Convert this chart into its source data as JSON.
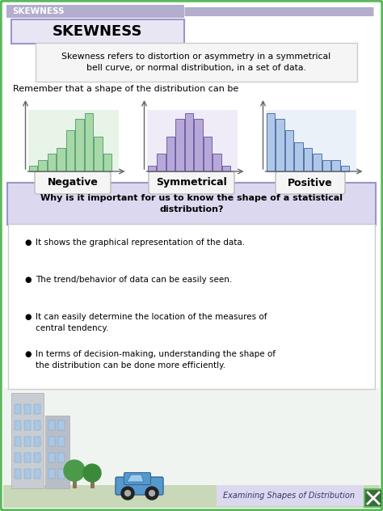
{
  "title_bar_text": "SKEWNESS",
  "title_bar_bg": "#b3aece",
  "main_bg": "#ffffff",
  "border_color": "#5cb85c",
  "heading_text": "SKEWNESS",
  "heading_bg": "#e8e6f5",
  "heading_border": "#9b96c8",
  "definition_text": "Skewness refers to distortion or asymmetry in a symmetrical\nbell curve, or normal distribution, in a set of data.",
  "definition_bg": "#f5f5f5",
  "definition_border": "#cccccc",
  "remember_text": "Remember that a shape of the distribution can be",
  "negative_label": "Negative",
  "symmetrical_label": "Symmetrical",
  "positive_label": "Positive",
  "label_bg": "#f5f5f5",
  "label_border": "#bbbbbb",
  "question_text": "Why is it important for us to know the shape of a statistical\ndistribution?",
  "question_bg": "#dcd8f0",
  "question_border": "#9b96c8",
  "bullet_points": [
    "It shows the graphical representation of the data.",
    "The trend/behavior of data can be easily seen.",
    "It can easily determine the location of the measures of\ncentral tendency.",
    "In terms of decision-making, understanding the shape of\nthe distribution can be done more efficiently."
  ],
  "bullet_bg": "#ffffff",
  "bullet_border": "#cccccc",
  "footer_text": "Examining Shapes of Distribution",
  "footer_bg": "#dcd8f0",
  "neg_bar_color": "#a8d8a8",
  "neg_bar_edge": "#4a9a6a",
  "neg_curve_color": "#3a7a50",
  "neg_bg_color": "#d0ead0",
  "sym_bar_color": "#b8a8d8",
  "sym_bar_edge": "#6050a0",
  "sym_curve_color": "#5040a0",
  "sym_bg_color": "#e0d8f0",
  "pos_bar_color": "#b0c8e8",
  "pos_bar_edge": "#4060a0",
  "pos_curve_color": "#3050a0",
  "pos_bg_color": "#d8e4f4",
  "neg_heights": [
    1,
    2,
    3,
    4,
    7,
    9,
    10,
    6,
    3
  ],
  "sym_heights": [
    1,
    3,
    6,
    9,
    10,
    9,
    6,
    3,
    1
  ],
  "pos_heights": [
    10,
    9,
    7,
    5,
    4,
    3,
    2,
    2,
    1
  ]
}
